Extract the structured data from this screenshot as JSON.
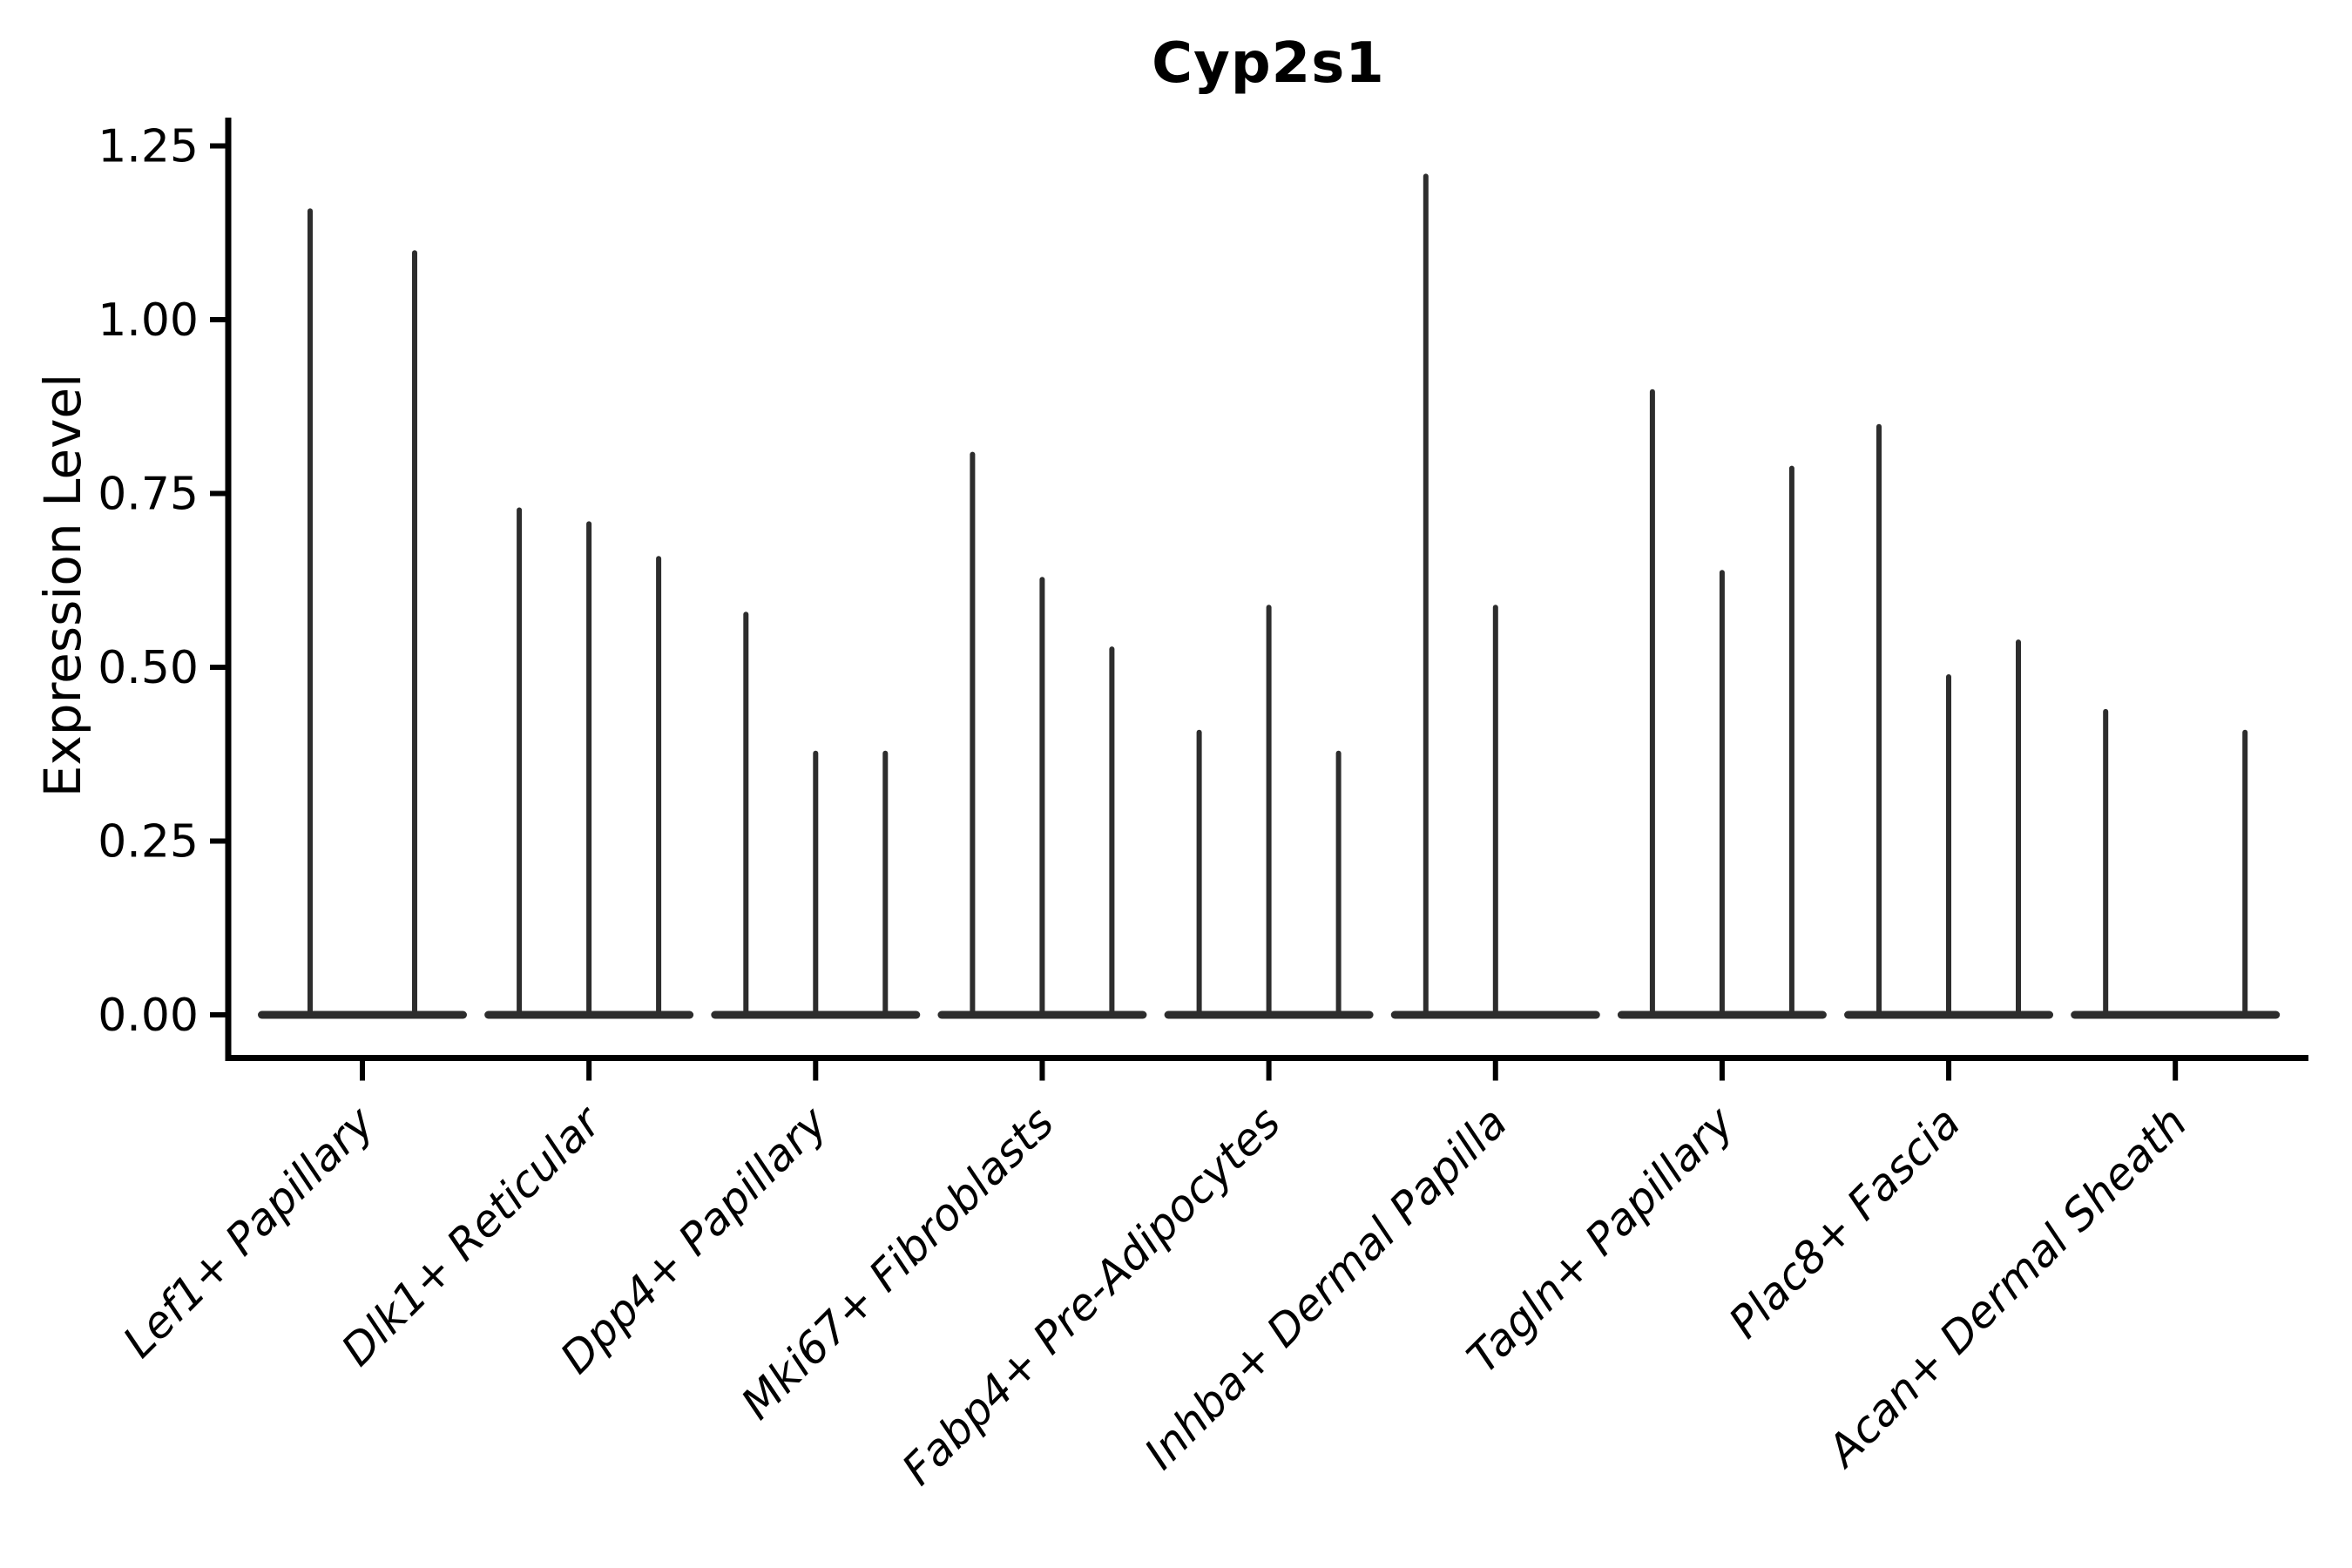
{
  "chart_data": {
    "type": "violin",
    "title": "Cyp2s1",
    "ylabel": "Expression Level",
    "xlabel": "",
    "ylim": [
      0,
      1.25
    ],
    "yticks": [
      0,
      0.25,
      0.5,
      0.75,
      1,
      1.25
    ],
    "ytick_labels": [
      "0.00",
      "0.25",
      "0.50",
      "0.75",
      "1.00",
      "1.25"
    ],
    "grid": false,
    "legend_position": "none",
    "violin_color": "#2d2d2d",
    "axis_color": "#000000",
    "categories": [
      "Lef1+ Papillary",
      "Dlk1+ Reticular",
      "Dpp4+ Papillary",
      "Mki67+ Fibroblasts",
      "Fabp4+ Pre-Adipocytes",
      "Inhba+ Dermal Papilla",
      "Tagln+ Papillary",
      "Plac8+ Fascia",
      "Acan+ Dermal Sheath"
    ],
    "series": [
      {
        "category": "Lef1+ Papillary",
        "violin_maxes": [
          1.16,
          1.1
        ]
      },
      {
        "category": "Dlk1+ Reticular",
        "violin_maxes": [
          0.73,
          0.71,
          0.66
        ]
      },
      {
        "category": "Dpp4+ Papillary",
        "violin_maxes": [
          0.58,
          0.38,
          0.38
        ]
      },
      {
        "category": "Mki67+ Fibroblasts",
        "violin_maxes": [
          0.81,
          0.63,
          0.53
        ]
      },
      {
        "category": "Fabp4+ Pre-Adipocytes",
        "violin_maxes": [
          0.41,
          0.59,
          0.38
        ]
      },
      {
        "category": "Inhba+ Dermal Papilla",
        "violin_maxes": [
          1.21,
          0.59,
          0.0
        ]
      },
      {
        "category": "Tagln+ Papillary",
        "violin_maxes": [
          0.9,
          0.64,
          0.79
        ]
      },
      {
        "category": "Plac8+ Fascia",
        "violin_maxes": [
          0.85,
          0.49,
          0.54
        ]
      },
      {
        "category": "Acan+ Dermal Sheath",
        "violin_maxes": [
          0.44,
          0.0,
          0.41
        ]
      }
    ]
  }
}
